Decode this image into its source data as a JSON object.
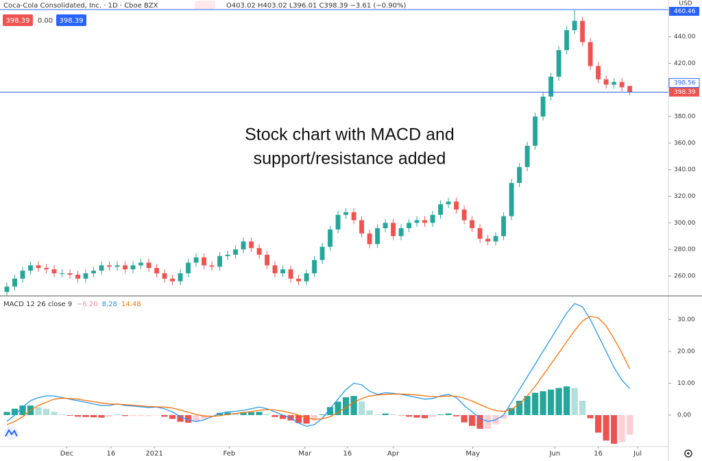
{
  "header": {
    "title": "Coca-Cola Consolidated, Inc. · 1D · Cboe BZX",
    "ohlc": "O403.02 H403.02 L396.01 C398.39 −3.61 (−0.90%)",
    "badges": [
      "398.39",
      "0.00",
      "398.39"
    ],
    "currency": "USD"
  },
  "annotation": [
    "Stock chart with MACD and",
    "support/resistance added"
  ],
  "chart_data": [
    {
      "type": "candlestick",
      "open": [
        248,
        252,
        258,
        264,
        268,
        266,
        265,
        262,
        262,
        261,
        258,
        262,
        264,
        268,
        267,
        268,
        265,
        268,
        270,
        266,
        262,
        258,
        256,
        262,
        270,
        274,
        268,
        267,
        275,
        276,
        280,
        286,
        281,
        276,
        268,
        262,
        265,
        258,
        256,
        262,
        272,
        282,
        295,
        306,
        308,
        302,
        292,
        284,
        296,
        300,
        290,
        296,
        300,
        302,
        300,
        306,
        314,
        316,
        310,
        302,
        296,
        288,
        286,
        290,
        305,
        330,
        342,
        358,
        380,
        395,
        410,
        430,
        445,
        452,
        436,
        418,
        408,
        404,
        406,
        403.02
      ],
      "high": [
        255,
        261,
        267,
        271,
        271,
        269,
        268,
        265,
        265,
        264,
        265,
        267,
        271,
        271,
        271,
        271,
        271,
        273,
        273,
        269,
        265,
        261,
        265,
        273,
        277,
        277,
        271,
        278,
        279,
        283,
        289,
        289,
        284,
        279,
        271,
        268,
        268,
        261,
        265,
        275,
        285,
        298,
        309,
        311,
        311,
        305,
        295,
        299,
        303,
        303,
        299,
        303,
        305,
        305,
        309,
        317,
        319,
        319,
        313,
        305,
        299,
        291,
        293,
        308,
        333,
        345,
        361,
        383,
        398,
        413,
        433,
        448,
        460,
        455,
        439,
        421,
        411,
        409,
        409,
        403.02
      ],
      "low": [
        245,
        249,
        255,
        261,
        263,
        262,
        259,
        259,
        258,
        255,
        255,
        259,
        261,
        264,
        264,
        262,
        262,
        265,
        263,
        259,
        255,
        253,
        253,
        259,
        267,
        265,
        264,
        264,
        272,
        273,
        277,
        278,
        273,
        265,
        259,
        259,
        255,
        253,
        253,
        259,
        269,
        279,
        292,
        303,
        299,
        289,
        281,
        281,
        293,
        287,
        287,
        293,
        297,
        297,
        297,
        303,
        311,
        307,
        299,
        293,
        285,
        283,
        283,
        287,
        302,
        327,
        339,
        355,
        377,
        392,
        407,
        427,
        442,
        433,
        415,
        405,
        401,
        401,
        399,
        396.01
      ],
      "close": [
        252,
        258,
        264,
        268,
        266,
        265,
        262,
        262,
        261,
        258,
        262,
        264,
        268,
        267,
        268,
        265,
        268,
        270,
        266,
        262,
        258,
        256,
        262,
        270,
        274,
        268,
        267,
        275,
        276,
        280,
        286,
        281,
        276,
        268,
        262,
        265,
        258,
        256,
        262,
        272,
        282,
        295,
        306,
        308,
        302,
        292,
        284,
        296,
        300,
        290,
        296,
        300,
        302,
        300,
        306,
        314,
        316,
        310,
        302,
        296,
        288,
        286,
        290,
        305,
        330,
        342,
        358,
        380,
        395,
        410,
        430,
        445,
        452,
        436,
        418,
        408,
        404,
        406,
        402,
        398.39
      ],
      "up_color": "#26a69a",
      "down_color": "#ef5350",
      "xlim": [
        -0.87,
        83.9
      ],
      "xticks": [
        {
          "value": 7.6,
          "label": "Dec"
        },
        {
          "value": 13.2,
          "label": "16"
        },
        {
          "value": 18.7,
          "label": "2021"
        },
        {
          "value": 28.2,
          "label": "Feb"
        },
        {
          "value": 37.8,
          "label": "Mar"
        },
        {
          "value": 43.2,
          "label": "16"
        },
        {
          "value": 49,
          "label": "Apr"
        },
        {
          "value": 59.1,
          "label": "May"
        },
        {
          "value": 69.5,
          "label": "Jun"
        },
        {
          "value": 75,
          "label": "16"
        },
        {
          "value": 80,
          "label": "Jul"
        }
      ],
      "ylim": [
        245,
        467.7
      ],
      "yticks": [
        {
          "value": 260,
          "label": "260.00"
        },
        {
          "value": 280,
          "label": "280.00"
        },
        {
          "value": 300,
          "label": "300.00"
        },
        {
          "value": 320,
          "label": "320.00"
        },
        {
          "value": 340,
          "label": "340.00"
        },
        {
          "value": 360,
          "label": "360.00"
        },
        {
          "value": 380,
          "label": "380.00"
        },
        {
          "value": 400,
          "label": "400.00"
        },
        {
          "value": 420,
          "label": "420.00"
        },
        {
          "value": 440,
          "label": "440.00"
        }
      ],
      "levels": [
        {
          "value": 460.46,
          "label": "460.46"
        },
        {
          "value": 398.39,
          "label": "398.39"
        }
      ],
      "level_color": "#2962ff",
      "price_tags": [
        {
          "value": 398.56,
          "label": "398.56",
          "color": "#2962ff"
        }
      ]
    },
    {
      "type": "macd",
      "title": "MACD 12 26 close 9",
      "legend": [
        {
          "value": -6.2,
          "label": "−6.20"
        },
        {
          "value": 8.28,
          "label": "8.28"
        },
        {
          "value": 14.48,
          "label": "14.48"
        }
      ],
      "histogram": [
        1,
        2,
        3,
        3,
        2.5,
        2,
        1,
        0.2,
        -0.2,
        -0.5,
        -0.6,
        -0.7,
        -0.8,
        -0.5,
        0.1,
        -0.3,
        -0.3,
        -0.3,
        -0.3,
        -0.1,
        -0.5,
        -1.2,
        -2.1,
        -2.4,
        -2.2,
        -1.2,
        -0.1,
        0.7,
        0.8,
        0.7,
        0.7,
        0.9,
        1,
        0.3,
        -0.6,
        -1.2,
        -1.7,
        -2.5,
        -2.7,
        -1.7,
        0.2,
        2.5,
        4.2,
        5.6,
        6,
        4.3,
        1.5,
        0.2,
        0.5,
        0.2,
        -0.1,
        -0.5,
        -0.8,
        -1,
        -0.6,
        0.2,
        0.5,
        -0.4,
        -2.3,
        -3.4,
        -4.3,
        -4.2,
        -2.9,
        -1.1,
        2.2,
        4.5,
        6,
        7,
        7.5,
        8,
        8.5,
        9,
        8.5,
        4.5,
        -1,
        -5.5,
        -8,
        -9,
        -8.5,
        -6.2
      ],
      "series": [
        {
          "name": "MACD",
          "color": "#2196f3",
          "values": [
            -2,
            0,
            2.5,
            4.5,
            5.5,
            6,
            6,
            5.5,
            5,
            4.5,
            4,
            3.5,
            3,
            3,
            3.5,
            3,
            2.8,
            2.6,
            2.4,
            2.5,
            2,
            1,
            -0.5,
            -1.5,
            -2,
            -1.5,
            -0.5,
            0.5,
            1,
            1.2,
            1.5,
            2,
            2.5,
            2,
            1,
            0,
            -1,
            -2.5,
            -3.5,
            -3,
            -1,
            2,
            5,
            8,
            10,
            9.5,
            7.5,
            6.5,
            7,
            6.8,
            6.5,
            6,
            5.5,
            5,
            5.2,
            6,
            6.5,
            5.5,
            3,
            1,
            -1,
            -2,
            -1.5,
            0,
            4,
            8,
            12,
            16,
            20,
            24,
            28,
            32,
            35,
            34,
            30,
            25,
            20,
            15,
            11,
            8.28
          ]
        },
        {
          "name": "Signal",
          "color": "#ff6d00",
          "values": [
            -3,
            -2,
            -0.5,
            1.5,
            3,
            4,
            5,
            5.3,
            5.2,
            5,
            4.6,
            4.2,
            3.8,
            3.5,
            3.4,
            3.3,
            3.1,
            2.9,
            2.7,
            2.6,
            2.5,
            2.2,
            1.6,
            0.9,
            0.2,
            -0.3,
            -0.4,
            -0.2,
            0.2,
            0.5,
            0.8,
            1.1,
            1.5,
            1.7,
            1.6,
            1.2,
            0.7,
            0,
            -0.8,
            -1.3,
            -1.2,
            -0.5,
            0.8,
            2.4,
            4,
            5.2,
            6,
            6.3,
            6.5,
            6.6,
            6.6,
            6.5,
            6.3,
            6,
            5.8,
            5.8,
            6,
            5.9,
            5.3,
            4.4,
            3.3,
            2.2,
            1.4,
            1.1,
            1.8,
            3.5,
            6,
            9,
            12.5,
            16,
            19.5,
            23,
            26.5,
            29.5,
            31,
            30.5,
            28,
            24,
            19.5,
            14.48
          ]
        }
      ],
      "hist_colors": [
        "#26a69a",
        "#b2dfdb",
        "#ffcdd2",
        "#ef5350"
      ],
      "ylim": [
        -9.9,
        37.4
      ],
      "yticks": [
        {
          "value": 0,
          "label": "0.00"
        },
        {
          "value": 10,
          "label": "10.00"
        },
        {
          "value": 20,
          "label": "20.00"
        },
        {
          "value": 30,
          "label": "30.00"
        }
      ]
    }
  ]
}
